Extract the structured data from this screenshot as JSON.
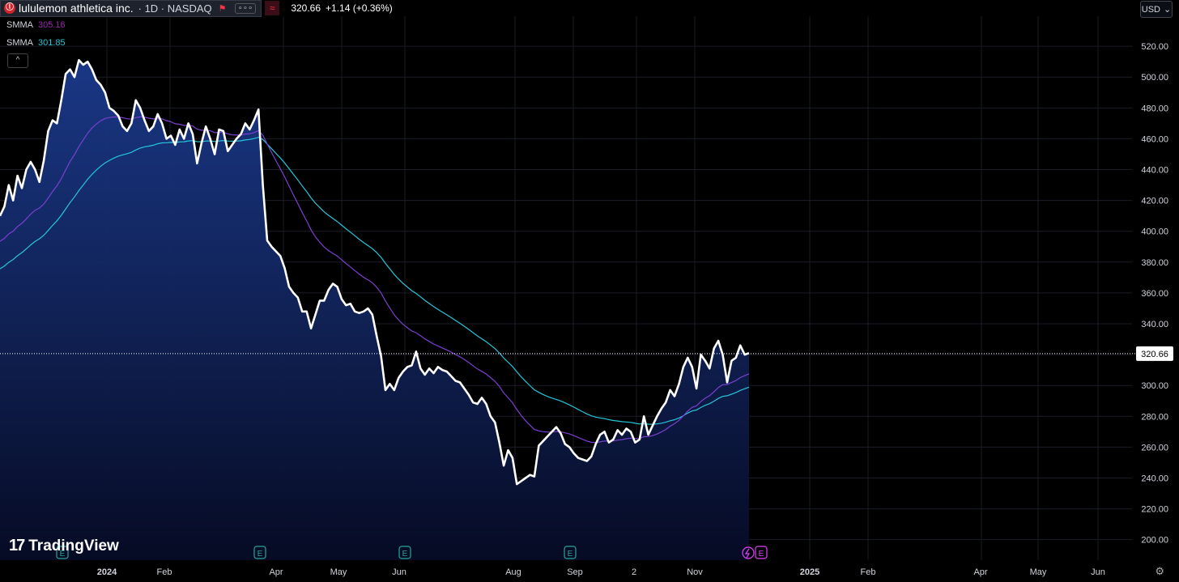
{
  "header": {
    "logo_letter": "ⓛ",
    "symbol_name": "lululemon athletica inc.",
    "symbol_meta": "· 1D · NASDAQ",
    "flag_icon": "flag-icon",
    "more_label": "∘∘∘",
    "wave_icon": "≈",
    "price": "320.66",
    "change": "+1.14 (+0.36%)"
  },
  "indicators": [
    {
      "name": "SMMA",
      "value": "305.16",
      "color": "#9c27b0"
    },
    {
      "name": "SMMA",
      "value": "301.85",
      "color": "#26c6da"
    }
  ],
  "collapse_label": "^",
  "currency": {
    "label": "USD",
    "caret": "⌄"
  },
  "brand": {
    "mark": "17",
    "name": "TradingView"
  },
  "settings_icon": "gear-icon",
  "chart_data": {
    "type": "area",
    "y_ticks": [
      520,
      500,
      480,
      460,
      440,
      420,
      400,
      380,
      360,
      340,
      320,
      300,
      280,
      260,
      240,
      220,
      200
    ],
    "ylim": [
      193,
      529
    ],
    "x_ticks": [
      "2024",
      "Feb",
      "Apr",
      "May",
      "Jun",
      "Aug",
      "Sep",
      "2",
      "Nov",
      "2025",
      "Feb",
      "Apr",
      "May",
      "Jun"
    ],
    "last_price_label": "320.66",
    "last_price": 320.66,
    "earnings_markers": [
      "E",
      "E",
      "E",
      "E",
      "E"
    ],
    "colors": {
      "price": "#ffffff",
      "fill_top": "#1b3a8c",
      "smma_fast": "#9c27b0",
      "smma_slow": "#26c6da",
      "price_label_bg": "#ffffff"
    },
    "series": [
      {
        "key": "price",
        "values": [
          410,
          416,
          430,
          420,
          436,
          428,
          440,
          445,
          440,
          432,
          446,
          465,
          472,
          470,
          485,
          502,
          505,
          500,
          511,
          508,
          510,
          505,
          498,
          495,
          490,
          480,
          478,
          475,
          468,
          465,
          470,
          485,
          480,
          472,
          465,
          468,
          476,
          470,
          460,
          462,
          456,
          466,
          460,
          470,
          463,
          444,
          457,
          468,
          460,
          450,
          466,
          465,
          452,
          456,
          460,
          463,
          470,
          466,
          472,
          479,
          430,
          394,
          390,
          387,
          384,
          376,
          364,
          360,
          357,
          348,
          348,
          337,
          346,
          355,
          355,
          362,
          366,
          364,
          356,
          352,
          353,
          348,
          347,
          348,
          350,
          346,
          332,
          319,
          297,
          301,
          297,
          305,
          309,
          312,
          313,
          322,
          311,
          307,
          311,
          308,
          312,
          310,
          309,
          306,
          303,
          302,
          298,
          294,
          289,
          288,
          292,
          288,
          280,
          276,
          263,
          248,
          258,
          253,
          236,
          238,
          240,
          242,
          241,
          261,
          264,
          267,
          270,
          273,
          269,
          262,
          260,
          256,
          253,
          252,
          251,
          254,
          262,
          268,
          270,
          263,
          265,
          271,
          268,
          272,
          270,
          263,
          265,
          280,
          268,
          274,
          280,
          285,
          289,
          297,
          293,
          301,
          312,
          318,
          312,
          298,
          320,
          316,
          311,
          324,
          329,
          320,
          302,
          316,
          318,
          326,
          320,
          321
        ],
        "x_range": [
          0,
          172
        ]
      },
      {
        "key": "smma_fast",
        "name": "SMMA",
        "value_label": "305.16"
      },
      {
        "key": "smma_slow",
        "name": "SMMA",
        "value_label": "301.85"
      }
    ]
  }
}
